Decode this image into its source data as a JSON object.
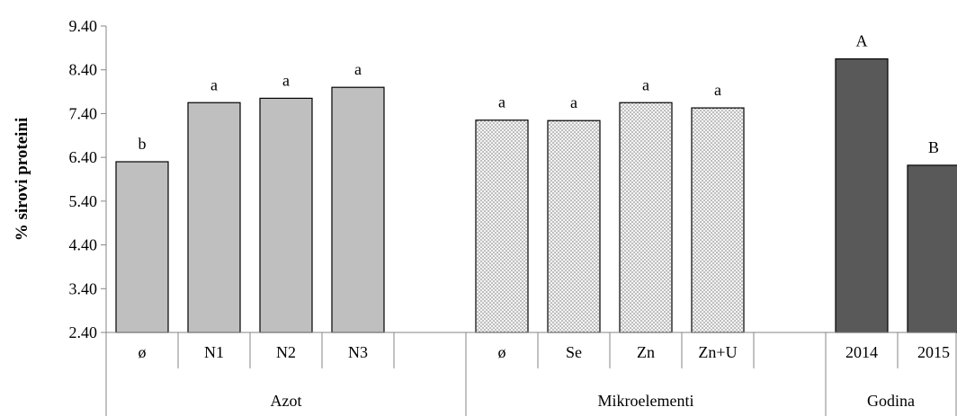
{
  "chart_data": {
    "type": "bar",
    "ylabel": "% sirovi proteini",
    "ylim": [
      2.4,
      9.4
    ],
    "yticks": [
      "2.40",
      "3.40",
      "4.40",
      "5.40",
      "6.40",
      "7.40",
      "8.40",
      "9.40"
    ],
    "grid": false,
    "groups": [
      {
        "name": "Azot",
        "style": "gray",
        "color": "#bfbfbf",
        "bars": [
          {
            "category": "ø",
            "value": 6.3,
            "label": "b"
          },
          {
            "category": "N1",
            "value": 7.65,
            "label": "a"
          },
          {
            "category": "N2",
            "value": 7.75,
            "label": "a"
          },
          {
            "category": "N3",
            "value": 8.0,
            "label": "a"
          }
        ]
      },
      {
        "name": "Mikroelementi",
        "style": "dotted",
        "color": "#f2f2f2",
        "bars": [
          {
            "category": "ø",
            "value": 7.25,
            "label": "a"
          },
          {
            "category": "Se",
            "value": 7.24,
            "label": "a"
          },
          {
            "category": "Zn",
            "value": 7.65,
            "label": "a"
          },
          {
            "category": "Zn+U",
            "value": 7.53,
            "label": "a"
          }
        ]
      },
      {
        "name": "Godina",
        "style": "dark",
        "color": "#595959",
        "bars": [
          {
            "category": "2014",
            "value": 8.65,
            "label": "A"
          },
          {
            "category": "2015",
            "value": 6.22,
            "label": "B"
          }
        ]
      }
    ]
  }
}
